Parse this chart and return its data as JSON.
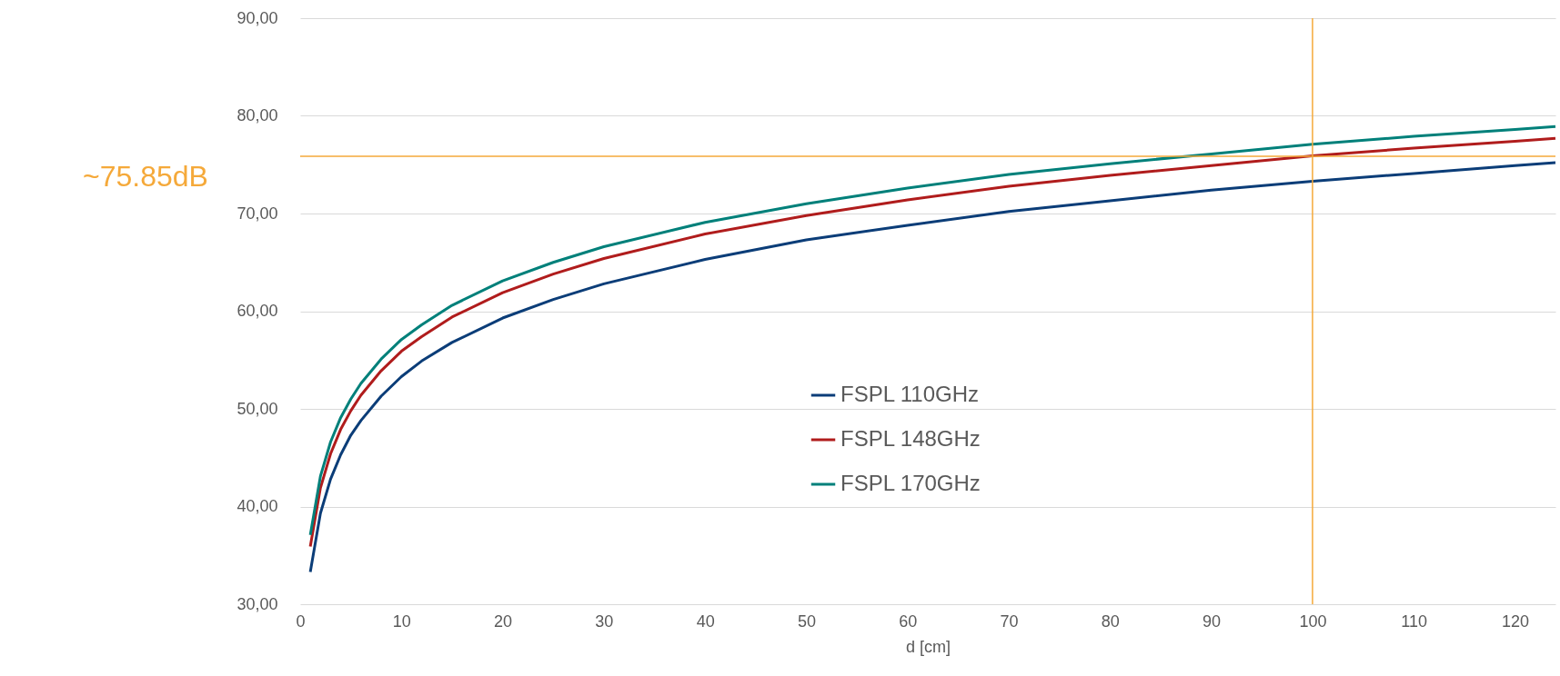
{
  "chart_data": {
    "type": "line",
    "xlabel": "d [cm]",
    "x": [
      1,
      2,
      3,
      4,
      5,
      6,
      8,
      10,
      12,
      15,
      20,
      25,
      30,
      40,
      50,
      60,
      70,
      80,
      90,
      100,
      110,
      120,
      124
    ],
    "series": [
      {
        "name": "FSPL 110GHz",
        "color": "#0b3d78",
        "values": [
          33.3,
          39.3,
          42.8,
          45.3,
          47.3,
          48.8,
          51.3,
          53.3,
          54.9,
          56.8,
          59.3,
          61.2,
          62.8,
          65.3,
          67.3,
          68.8,
          70.2,
          71.3,
          72.4,
          73.3,
          74.1,
          74.9,
          75.2
        ]
      },
      {
        "name": "FSPL 148GHz",
        "color": "#b01c1c",
        "values": [
          35.9,
          41.9,
          45.4,
          47.9,
          49.8,
          51.4,
          53.9,
          55.9,
          57.4,
          59.4,
          61.9,
          63.8,
          65.4,
          67.9,
          69.8,
          71.4,
          72.8,
          73.9,
          74.9,
          75.9,
          76.7,
          77.4,
          77.7
        ]
      },
      {
        "name": "FSPL 170GHz",
        "color": "#00807a",
        "values": [
          37.1,
          43.1,
          46.6,
          49.1,
          51.0,
          52.6,
          55.1,
          57.1,
          58.6,
          60.6,
          63.1,
          65.0,
          66.6,
          69.1,
          71.0,
          72.6,
          74.0,
          75.1,
          76.1,
          77.1,
          77.9,
          78.6,
          78.9
        ]
      }
    ],
    "xlim": [
      0,
      124
    ],
    "xticks": [
      0,
      10,
      20,
      30,
      40,
      50,
      60,
      70,
      80,
      90,
      100,
      110,
      120
    ],
    "ylim": [
      30,
      90
    ],
    "yticks": [
      {
        "value": 30,
        "label": "30,00"
      },
      {
        "value": 40,
        "label": "40,00"
      },
      {
        "value": 50,
        "label": "50,00"
      },
      {
        "value": 60,
        "label": "60,00"
      },
      {
        "value": 70,
        "label": "70,00"
      },
      {
        "value": 80,
        "label": "80,00"
      },
      {
        "value": 90,
        "label": "90,00"
      }
    ],
    "ref_lines": [
      {
        "axis": "y",
        "value": 75.85,
        "label": "~75.85dB",
        "color": "#f5a93a"
      },
      {
        "axis": "x",
        "value": 100,
        "color": "#f5a93a"
      }
    ],
    "grid": "y",
    "legend": "center",
    "marker": "none",
    "line_style": "solid"
  }
}
